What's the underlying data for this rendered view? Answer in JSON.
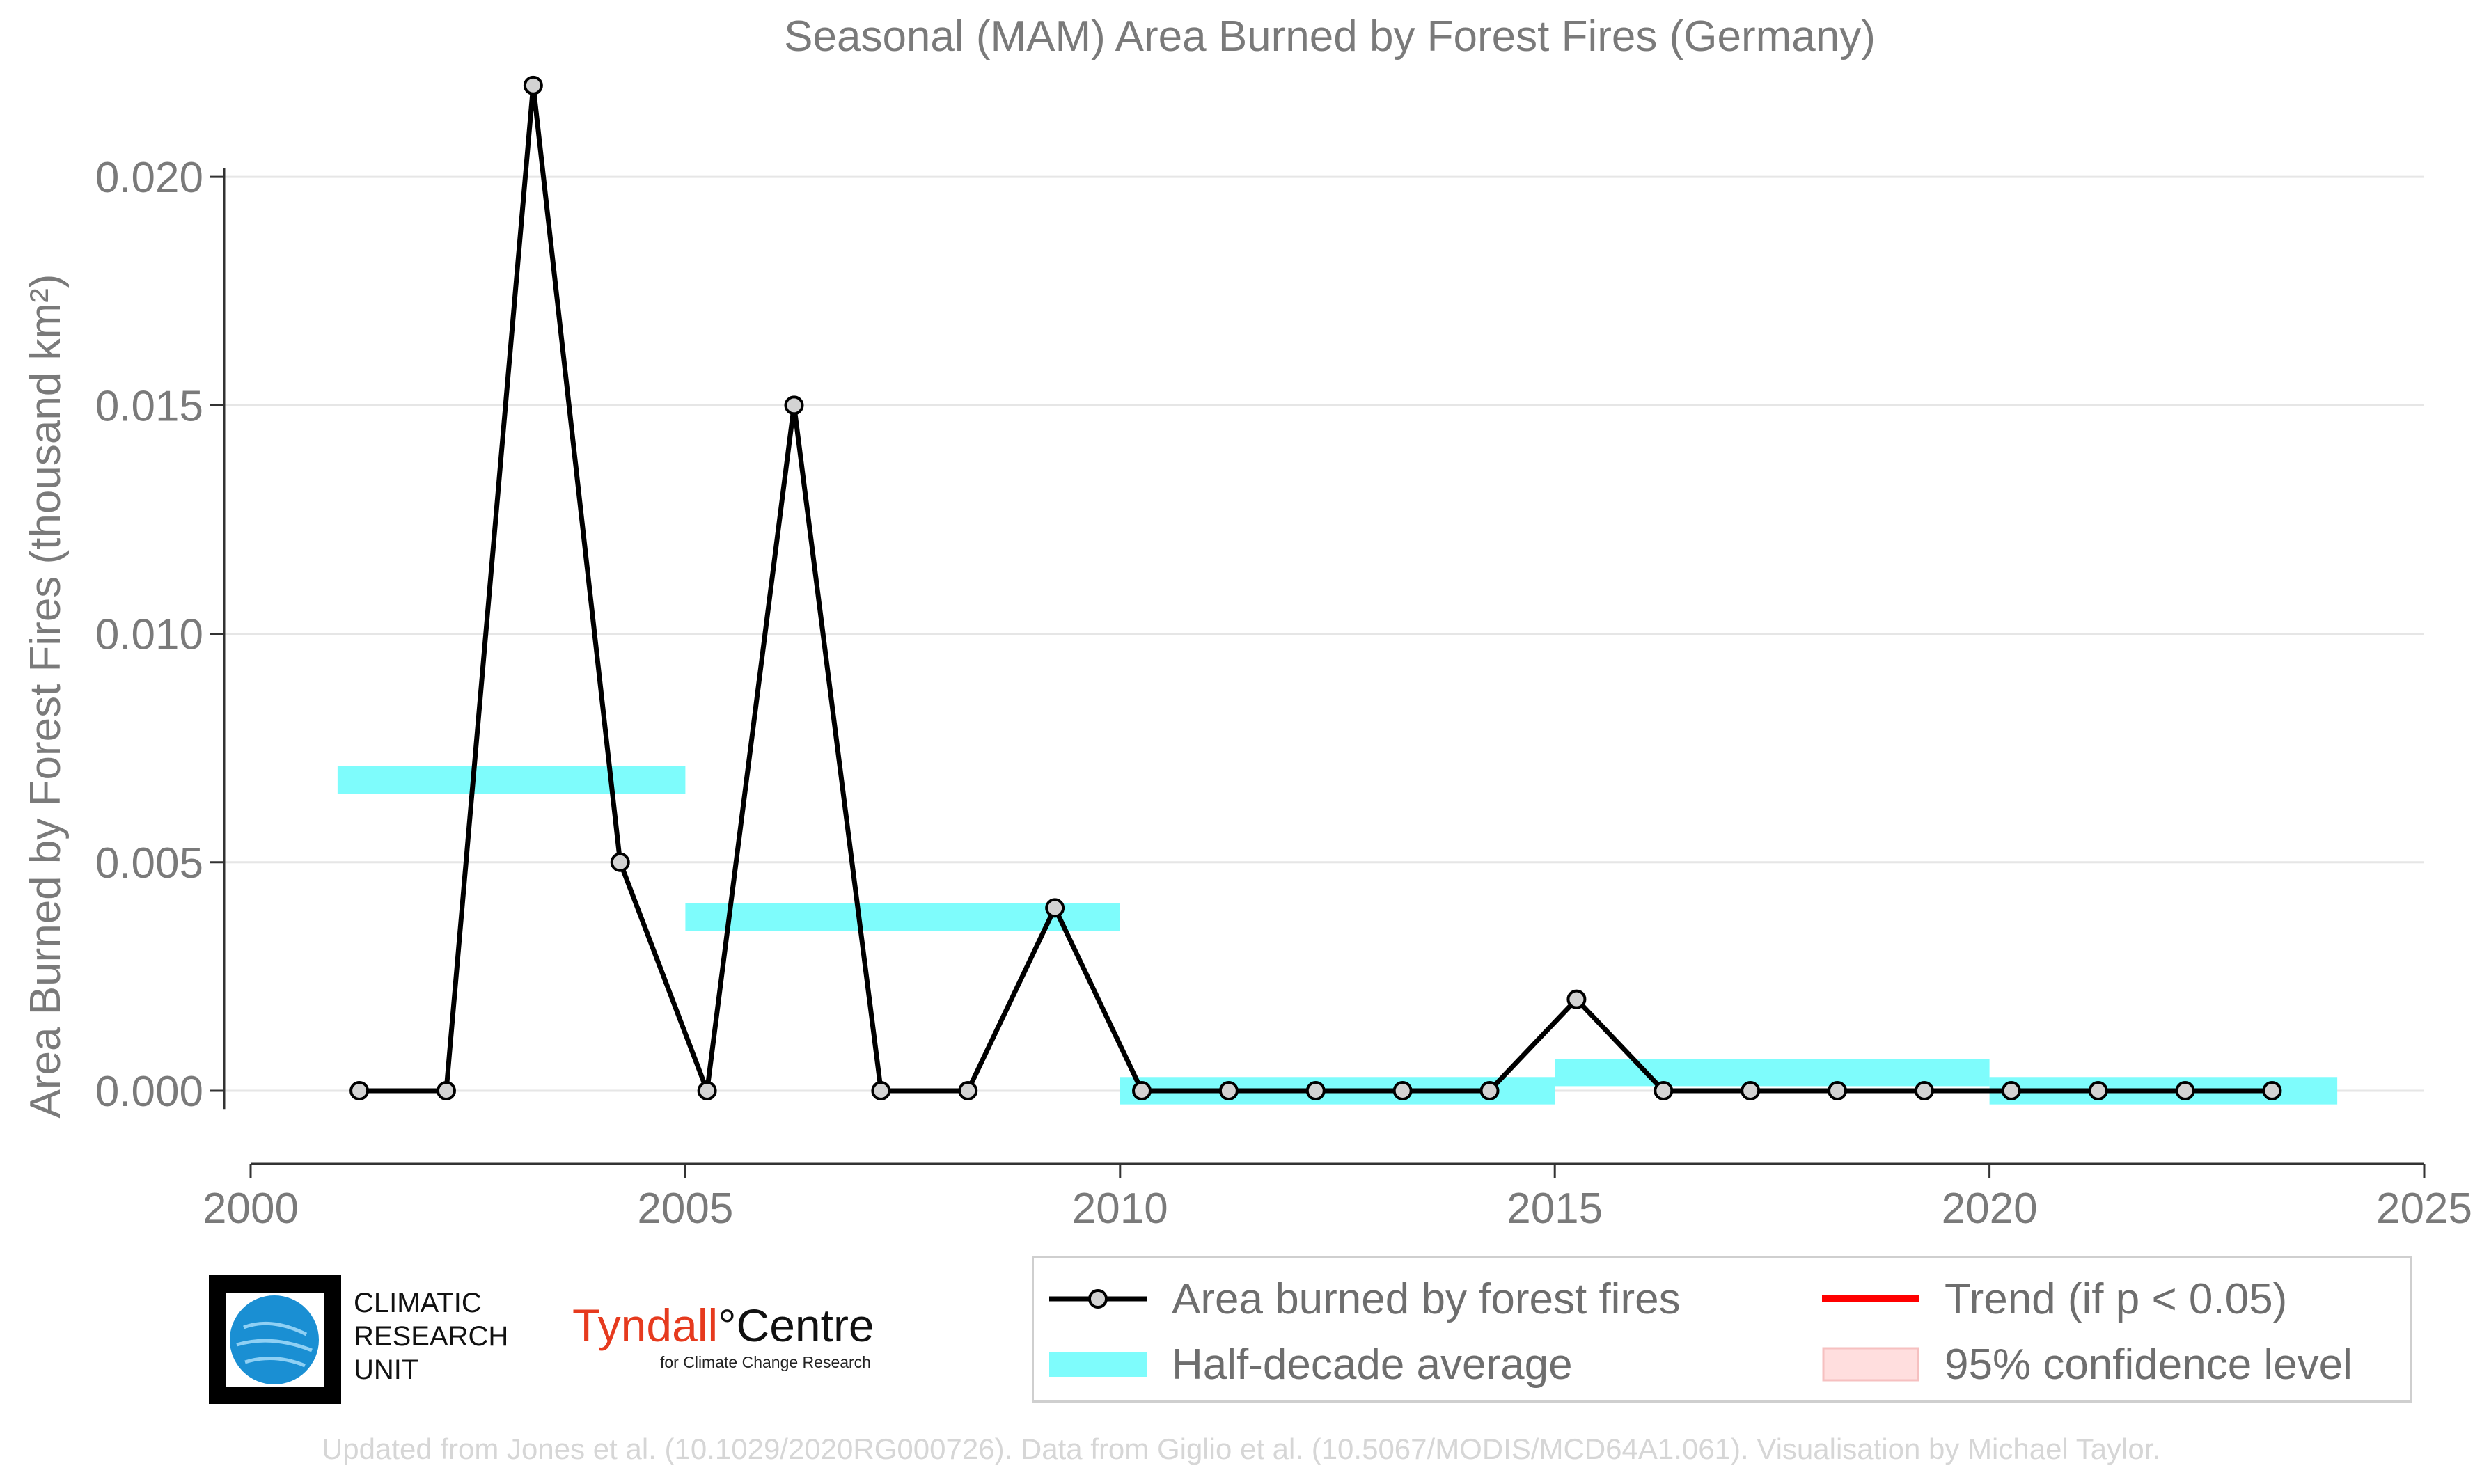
{
  "chart_data": {
    "type": "line",
    "title": "Seasonal (MAM) Area Burned by Forest Fires (Germany)",
    "ylabel": "Area Burned by Forest Fires (thousand km²)",
    "xlabel": "",
    "xlim": [
      2000,
      2025
    ],
    "ylim": [
      -0.0016,
      0.0225
    ],
    "x_ticks": [
      "2000",
      "2005",
      "2010",
      "2015",
      "2020",
      "2025"
    ],
    "y_ticks": [
      "0.000",
      "0.005",
      "0.010",
      "0.015",
      "0.020"
    ],
    "grid": "horizontal",
    "legend_position": "bottom-right",
    "series": [
      {
        "name": "Area burned by forest fires",
        "color": "#000000",
        "marker_fill": "#d3d3d3",
        "x": [
          2001,
          2002,
          2003,
          2004,
          2005,
          2006,
          2007,
          2008,
          2009,
          2010,
          2011,
          2012,
          2013,
          2014,
          2015,
          2016,
          2017,
          2018,
          2019,
          2020,
          2021,
          2022,
          2023
        ],
        "y": [
          0.0,
          0.0,
          0.022,
          0.005,
          0.0,
          0.015,
          0.0,
          0.0,
          0.004,
          0.0,
          0.0,
          0.0,
          0.0,
          0.0,
          0.002,
          0.0,
          0.0,
          0.0,
          0.0,
          0.0,
          0.0,
          0.0,
          0.0
        ]
      }
    ],
    "half_decade_average": {
      "name": "Half-decade average",
      "color": "#7efcfc",
      "segments": [
        {
          "x_start": 2001,
          "x_end": 2005,
          "value": 0.0068
        },
        {
          "x_start": 2005,
          "x_end": 2010,
          "value": 0.0038
        },
        {
          "x_start": 2010,
          "x_end": 2015,
          "value": 0.0
        },
        {
          "x_start": 2015,
          "x_end": 2020,
          "value": 0.0004
        },
        {
          "x_start": 2020,
          "x_end": 2024,
          "value": 0.0
        }
      ]
    },
    "trend": {
      "name": "Trend (if p < 0.05)",
      "color": "#ff0000"
    },
    "confidence": {
      "name": "95% confidence level",
      "color": "#ffdede"
    }
  },
  "logos": {
    "cru_lines": [
      "CLIMATIC",
      "RESEARCH",
      "UNIT"
    ],
    "tyndall_red": "Tyndall",
    "tyndall_degree": "°",
    "tyndall_black": "Centre",
    "tyndall_sub": "for Climate Change Research"
  },
  "footer": "Updated from Jones et al. (10.1029/2020RG000726). Data from Giglio et al. (10.5067/MODIS/MCD64A1.061). Visualisation by Michael Taylor."
}
